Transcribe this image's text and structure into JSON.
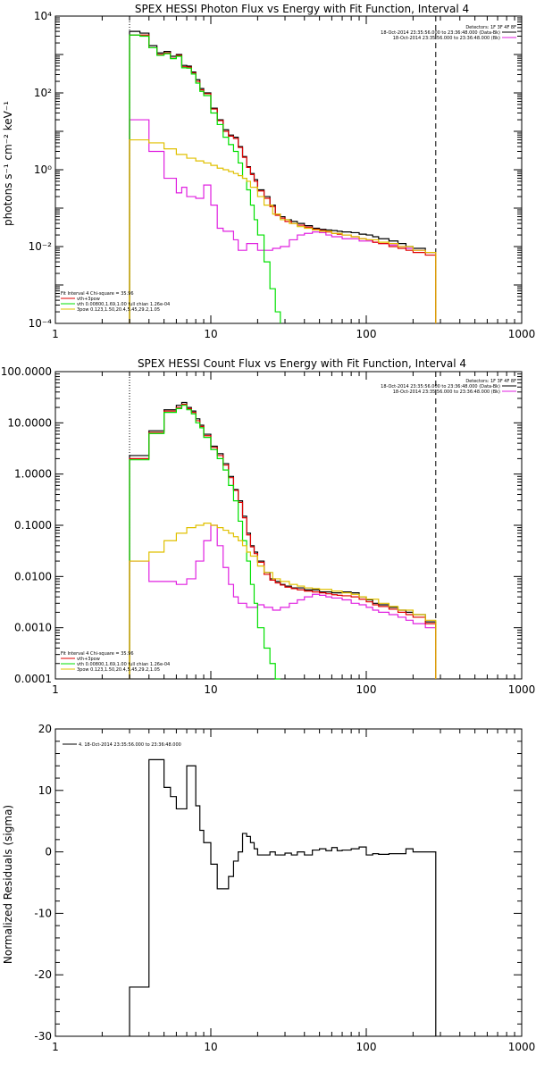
{
  "chart_data": [
    {
      "type": "line",
      "title": "SPEX HESSI Photon Flux vs Energy with Fit Function, Interval 4",
      "ylabel": "photons s⁻¹ cm⁻² keV⁻¹",
      "xlabel": "",
      "xscale": "log",
      "yscale": "log",
      "xlim": [
        1,
        1000
      ],
      "ylim": [
        0.0001,
        10000
      ],
      "x_ticks": [
        "1",
        "10",
        "100",
        "1000"
      ],
      "y_ticks": [
        "10⁻⁴",
        "10⁻²",
        "10⁰",
        "10²",
        "10⁴"
      ],
      "legend_topright": [
        "Detectors: 1F 3F 4F 8F",
        "18-Oct-2014 23:35:56.000 to 23:36:48.000 (Data-Bk)",
        "18-Oct-2014 23:35:56.000 to 23:36:48.000 (Bk)"
      ],
      "legend_bottomleft": [
        "Fit Interval 4   Chi-square = 35.96",
        "vth+3pow",
        "vth 0.00800,1.69,1.00  full chian 1.26e-04",
        "3pow 0.123,1.50,20.4,5.45,29.2,1.05"
      ],
      "vlines": [
        3,
        280
      ],
      "series": [
        {
          "name": "Data-Bk",
          "color": "#000000",
          "edges": [
            3,
            3.5,
            4,
            4.5,
            5,
            5.5,
            6,
            6.5,
            7,
            7.5,
            8,
            8.5,
            9,
            10,
            11,
            12,
            13,
            14,
            15,
            16,
            17,
            18,
            19,
            20,
            22,
            24,
            26,
            28,
            30,
            33,
            36,
            40,
            45,
            50,
            55,
            60,
            65,
            70,
            80,
            90,
            100,
            110,
            120,
            140,
            160,
            180,
            200,
            240,
            280
          ],
          "values": [
            4000,
            3600,
            1700,
            1100,
            1200,
            900,
            1000,
            520,
            500,
            350,
            220,
            130,
            100,
            40,
            20,
            11,
            8,
            7,
            4,
            2.2,
            1.2,
            0.8,
            0.55,
            0.3,
            0.2,
            0.12,
            0.07,
            0.06,
            0.05,
            0.045,
            0.04,
            0.035,
            0.03,
            0.028,
            0.027,
            0.026,
            0.025,
            0.024,
            0.023,
            0.021,
            0.02,
            0.018,
            0.016,
            0.014,
            0.012,
            0.01,
            0.009,
            0.007
          ]
        },
        {
          "name": "Bk",
          "color": "#e020e0",
          "edges": [
            3,
            4,
            5,
            6,
            6.5,
            7,
            7.5,
            8,
            9,
            10,
            11,
            12,
            14,
            15,
            16,
            17,
            18,
            20,
            22,
            25,
            28,
            32,
            36,
            40,
            45,
            50,
            55,
            60,
            70,
            80,
            90,
            100,
            110,
            120,
            140,
            160,
            180,
            200,
            240,
            280
          ],
          "values": [
            20,
            3,
            0.6,
            0.25,
            0.35,
            0.2,
            0.2,
            0.18,
            0.4,
            0.12,
            0.03,
            0.025,
            0.015,
            0.008,
            0.008,
            0.012,
            0.012,
            0.008,
            0.008,
            0.009,
            0.01,
            0.015,
            0.02,
            0.022,
            0.024,
            0.023,
            0.02,
            0.018,
            0.016,
            0.016,
            0.014,
            0.014,
            0.013,
            0.012,
            0.011,
            0.01,
            0.009,
            0.008,
            0.007
          ]
        },
        {
          "name": "vth+3pow",
          "color": "#e00000",
          "edges": [
            3,
            3.5,
            4,
            4.5,
            5,
            5.5,
            6,
            6.5,
            7,
            7.5,
            8,
            8.5,
            9,
            10,
            11,
            12,
            13,
            14,
            15,
            16,
            17,
            18,
            19,
            20,
            22,
            24,
            26,
            28,
            30,
            33,
            36,
            40,
            45,
            50,
            55,
            60,
            65,
            70,
            80,
            90,
            100,
            110,
            120,
            140,
            160,
            180,
            200,
            240,
            280
          ],
          "values": [
            3200,
            3200,
            1500,
            1000,
            1100,
            800,
            950,
            480,
            470,
            330,
            200,
            120,
            95,
            38,
            19,
            10,
            7.5,
            6.5,
            3.8,
            2.1,
            1.15,
            0.75,
            0.5,
            0.28,
            0.18,
            0.11,
            0.065,
            0.055,
            0.045,
            0.04,
            0.036,
            0.032,
            0.028,
            0.026,
            0.024,
            0.022,
            0.021,
            0.02,
            0.018,
            0.016,
            0.015,
            0.013,
            0.012,
            0.01,
            0.009,
            0.008,
            0.007,
            0.006
          ]
        },
        {
          "name": "vth",
          "color": "#00e000",
          "edges": [
            3,
            3.5,
            4,
            4.5,
            5,
            5.5,
            6,
            6.5,
            7,
            7.5,
            8,
            8.5,
            9,
            10,
            11,
            12,
            13,
            14,
            15,
            16,
            17,
            18,
            19,
            20,
            22,
            24,
            26,
            28
          ],
          "values": [
            3200,
            3000,
            1500,
            950,
            1050,
            780,
            900,
            450,
            440,
            310,
            180,
            110,
            85,
            30,
            15,
            7,
            4.5,
            3,
            1.5,
            0.6,
            0.3,
            0.12,
            0.05,
            0.02,
            0.004,
            0.0008,
            0.0002,
            0.0001
          ]
        },
        {
          "name": "3pow",
          "color": "#e0c000",
          "edges": [
            3,
            4,
            5,
            6,
            7,
            8,
            9,
            10,
            11,
            12,
            13,
            14,
            15,
            16,
            17,
            18,
            20,
            22,
            25,
            28,
            32,
            36,
            40,
            45,
            50,
            60,
            70,
            80,
            90,
            100,
            120,
            140,
            160,
            200,
            240,
            280
          ],
          "values": [
            6,
            5,
            3.5,
            2.5,
            2,
            1.7,
            1.5,
            1.3,
            1.1,
            1.0,
            0.9,
            0.8,
            0.7,
            0.6,
            0.5,
            0.35,
            0.2,
            0.12,
            0.07,
            0.05,
            0.04,
            0.033,
            0.03,
            0.027,
            0.025,
            0.022,
            0.02,
            0.018,
            0.016,
            0.015,
            0.013,
            0.012,
            0.01,
            0.008,
            0.007,
            0.006
          ]
        }
      ]
    },
    {
      "type": "line",
      "title": "SPEX HESSI Count Flux vs Energy with Fit Function, Interval 4",
      "ylabel": "",
      "xlabel": "",
      "xscale": "log",
      "yscale": "log",
      "xlim": [
        1,
        1000
      ],
      "ylim": [
        0.0001,
        100
      ],
      "x_ticks": [
        "1",
        "10",
        "100",
        "1000"
      ],
      "y_ticks": [
        "0.0001",
        "0.0010",
        "0.0100",
        "0.1000",
        "1.0000",
        "10.0000",
        "100.0000"
      ],
      "legend_topright": [
        "Detectors: 1F 3F 4F 8F",
        "18-Oct-2014 23:35:56.000 to 23:36:48.000 (Data-Bk)",
        "18-Oct-2014 23:35:56.000 to 23:36:48.000 (Bk)"
      ],
      "legend_bottomleft": [
        "Fit Interval 4   Chi-square = 35.96",
        "vth+3pow",
        "vth 0.00800,1.69,1.00  full chian 1.26e-04",
        "3pow 0.123,1.50,20.4,5.45,29.2,1.05"
      ],
      "vlines": [
        3,
        280
      ],
      "series": [
        {
          "name": "Data-Bk",
          "color": "#000000",
          "edges": [
            3,
            4,
            5,
            6,
            6.5,
            7,
            7.5,
            8,
            8.5,
            9,
            10,
            11,
            12,
            13,
            14,
            15,
            16,
            17,
            18,
            19,
            20,
            22,
            24,
            26,
            28,
            30,
            33,
            36,
            40,
            45,
            50,
            55,
            60,
            65,
            70,
            80,
            90,
            100,
            110,
            120,
            140,
            160,
            180,
            200,
            240,
            280
          ],
          "values": [
            2.3,
            7,
            18,
            22,
            25,
            20,
            17,
            12,
            9,
            6,
            3.5,
            2.5,
            1.6,
            0.9,
            0.5,
            0.3,
            0.15,
            0.07,
            0.04,
            0.03,
            0.02,
            0.012,
            0.009,
            0.008,
            0.007,
            0.0065,
            0.006,
            0.006,
            0.0055,
            0.0055,
            0.005,
            0.005,
            0.0048,
            0.0048,
            0.005,
            0.0048,
            0.004,
            0.0035,
            0.003,
            0.0028,
            0.0025,
            0.0022,
            0.002,
            0.0018,
            0.0013,
            0.001
          ]
        },
        {
          "name": "Bk",
          "color": "#e020e0",
          "edges": [
            3,
            4,
            6,
            7,
            8,
            9,
            10,
            11,
            12,
            13,
            14,
            15,
            16,
            17,
            18,
            20,
            22,
            25,
            28,
            32,
            36,
            40,
            45,
            50,
            55,
            60,
            70,
            80,
            90,
            100,
            110,
            120,
            140,
            160,
            180,
            200,
            240,
            280
          ],
          "values": [
            0.02,
            0.008,
            0.007,
            0.009,
            0.02,
            0.05,
            0.1,
            0.04,
            0.015,
            0.007,
            0.004,
            0.003,
            0.003,
            0.0025,
            0.0025,
            0.0028,
            0.0025,
            0.0022,
            0.0025,
            0.003,
            0.0035,
            0.004,
            0.0045,
            0.0043,
            0.004,
            0.0038,
            0.0035,
            0.003,
            0.0028,
            0.0025,
            0.0022,
            0.002,
            0.0018,
            0.0016,
            0.0014,
            0.0012,
            0.001
          ]
        },
        {
          "name": "vth+3pow",
          "color": "#e00000",
          "edges": [
            3,
            4,
            5,
            6,
            6.5,
            7,
            7.5,
            8,
            8.5,
            9,
            10,
            11,
            12,
            13,
            14,
            15,
            16,
            17,
            18,
            19,
            20,
            22,
            24,
            26,
            28,
            30,
            33,
            36,
            40,
            45,
            50,
            55,
            60,
            65,
            70,
            80,
            90,
            100,
            110,
            120,
            140,
            160,
            180,
            200,
            240,
            280
          ],
          "values": [
            2.0,
            6.5,
            17,
            20,
            23,
            19,
            16,
            11,
            8.5,
            5.6,
            3.3,
            2.3,
            1.5,
            0.85,
            0.48,
            0.28,
            0.14,
            0.065,
            0.038,
            0.028,
            0.019,
            0.011,
            0.0085,
            0.0075,
            0.0068,
            0.0062,
            0.0058,
            0.0055,
            0.0052,
            0.005,
            0.0048,
            0.0046,
            0.0044,
            0.0043,
            0.0042,
            0.004,
            0.0036,
            0.0032,
            0.0028,
            0.0026,
            0.0023,
            0.002,
            0.0018,
            0.0016,
            0.0012,
            0.0009
          ]
        },
        {
          "name": "vth",
          "color": "#00e000",
          "edges": [
            3,
            4,
            5,
            6,
            6.5,
            7,
            7.5,
            8,
            8.5,
            9,
            10,
            11,
            12,
            13,
            14,
            15,
            16,
            17,
            18,
            19,
            20,
            22,
            24,
            26,
            28
          ],
          "values": [
            1.9,
            6.2,
            16,
            19,
            22,
            18,
            15,
            10,
            8,
            5.2,
            3,
            2,
            1.2,
            0.6,
            0.3,
            0.12,
            0.05,
            0.02,
            0.007,
            0.003,
            0.001,
            0.0004,
            0.0002,
            0.0001,
            0.0001
          ]
        },
        {
          "name": "3pow",
          "color": "#e0c000",
          "edges": [
            3,
            4,
            5,
            6,
            7,
            8,
            9,
            10,
            11,
            12,
            13,
            14,
            15,
            16,
            17,
            18,
            20,
            22,
            25,
            28,
            32,
            36,
            40,
            45,
            50,
            60,
            70,
            80,
            90,
            100,
            120,
            140,
            160,
            200,
            240,
            280
          ],
          "values": [
            0.02,
            0.03,
            0.05,
            0.07,
            0.09,
            0.1,
            0.11,
            0.1,
            0.09,
            0.08,
            0.07,
            0.06,
            0.05,
            0.04,
            0.03,
            0.025,
            0.016,
            0.012,
            0.009,
            0.008,
            0.007,
            0.0065,
            0.006,
            0.0058,
            0.0056,
            0.0052,
            0.0048,
            0.0045,
            0.004,
            0.0036,
            0.003,
            0.0026,
            0.0022,
            0.0018,
            0.0014,
            0.001
          ]
        }
      ]
    },
    {
      "type": "line",
      "title": "",
      "ylabel": "Normalized Residuals (sigma)",
      "xlabel": "",
      "xscale": "log",
      "yscale": "linear",
      "xlim": [
        1,
        1000
      ],
      "ylim": [
        -30,
        20
      ],
      "x_ticks": [
        "1",
        "10",
        "100",
        "1000"
      ],
      "y_ticks": [
        "-30",
        "-20",
        "-10",
        "0",
        "10",
        "20"
      ],
      "legend_topleft": [
        "4. 18-Oct-2014 23:35:56.000 to 23:36:48.000"
      ],
      "series": [
        {
          "name": "4. 18-Oct-2014 23:35:56.000 to 23:36:48.000",
          "color": "#000000",
          "edges": [
            3,
            4,
            4.5,
            5,
            5.5,
            6,
            6.5,
            7,
            7.5,
            8,
            8.5,
            9,
            10,
            11,
            12,
            13,
            14,
            15,
            16,
            17,
            18,
            19,
            20,
            22,
            24,
            26,
            28,
            30,
            33,
            36,
            40,
            45,
            50,
            55,
            60,
            65,
            70,
            80,
            90,
            100,
            110,
            120,
            140,
            160,
            180,
            200,
            240,
            280
          ],
          "values": [
            -22,
            15,
            15,
            10.5,
            9,
            7,
            7,
            14,
            14,
            7.5,
            3.5,
            1.5,
            -2,
            -6,
            -6,
            -4,
            -1.5,
            0,
            3,
            2.5,
            1.5,
            0.5,
            -0.5,
            -0.5,
            0,
            -0.5,
            -0.5,
            -0.2,
            -0.5,
            0,
            -0.5,
            0.3,
            0.5,
            0.2,
            0.7,
            0.2,
            0.3,
            0.5,
            0.8,
            -0.5,
            -0.3,
            -0.4,
            -0.3,
            -0.3,
            0.5,
            0,
            0
          ]
        }
      ]
    }
  ]
}
